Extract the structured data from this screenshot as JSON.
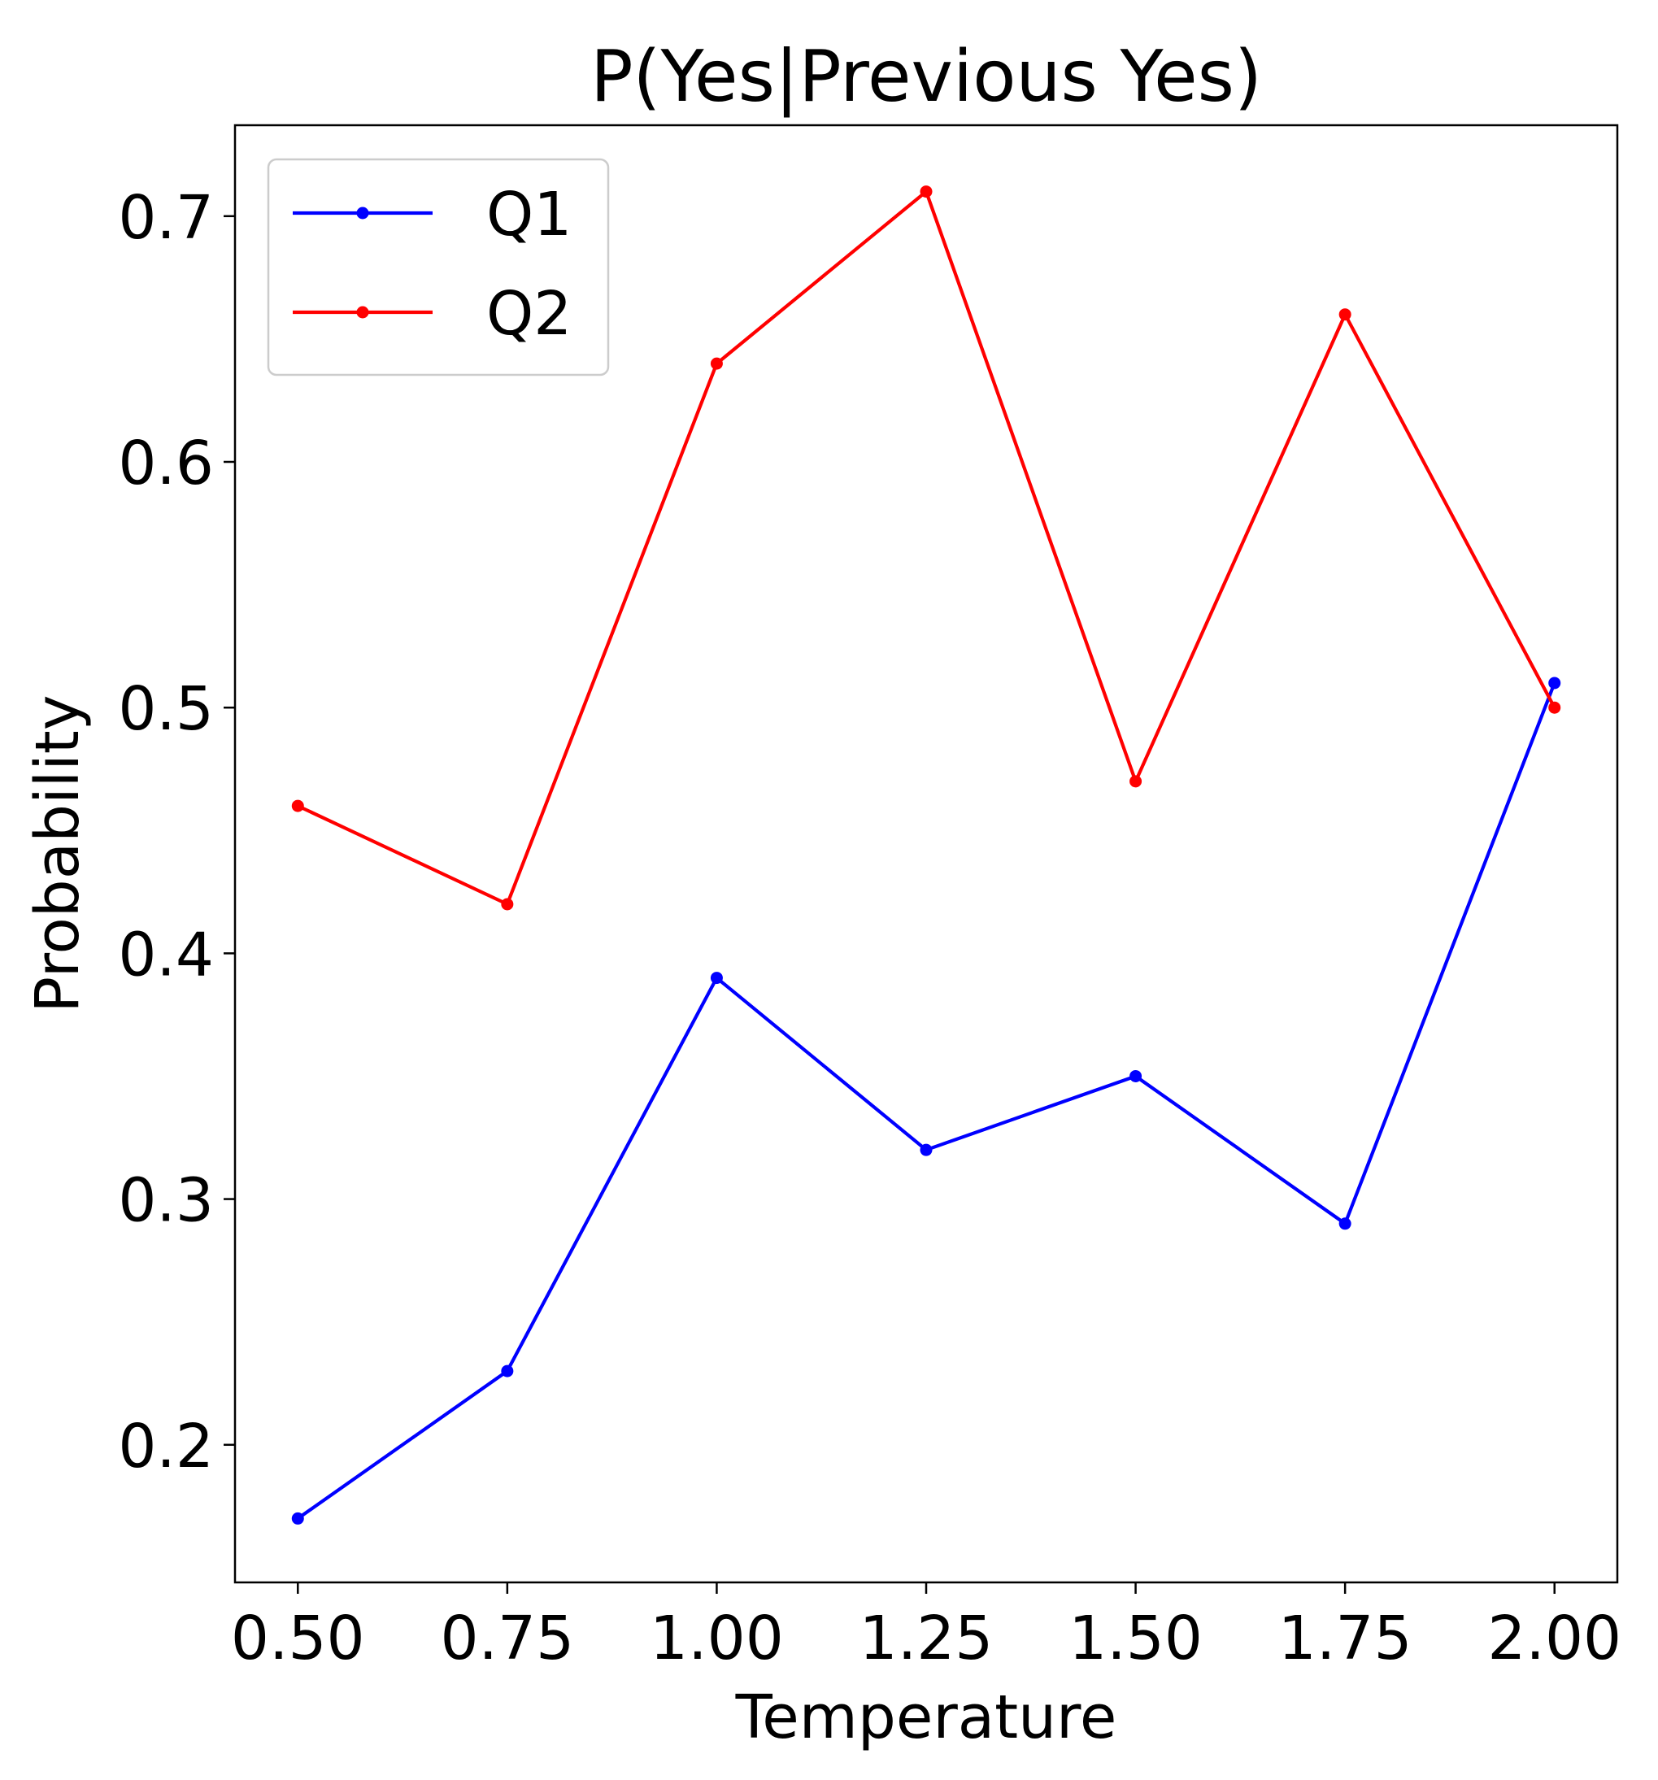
{
  "chart_data": {
    "type": "line",
    "title": "P(Yes|Previous Yes)",
    "xlabel": "Temperature",
    "ylabel": "Probability",
    "x": [
      0.5,
      0.75,
      1.0,
      1.25,
      1.5,
      1.75,
      2.0
    ],
    "xlim": [
      0.425,
      2.075
    ],
    "ylim": [
      0.144,
      0.737
    ],
    "xticks": [
      0.5,
      0.75,
      1.0,
      1.25,
      1.5,
      1.75,
      2.0
    ],
    "xtick_labels": [
      "0.50",
      "0.75",
      "1.00",
      "1.25",
      "1.50",
      "1.75",
      "2.00"
    ],
    "yticks": [
      0.2,
      0.3,
      0.4,
      0.5,
      0.6,
      0.7
    ],
    "ytick_labels": [
      "0.2",
      "0.3",
      "0.4",
      "0.5",
      "0.6",
      "0.7"
    ],
    "grid": false,
    "legend_position": "top-left",
    "series": [
      {
        "name": "Q1",
        "color": "#0000ff",
        "marker": "dot",
        "values": [
          0.17,
          0.23,
          0.39,
          0.32,
          0.35,
          0.29,
          0.51
        ]
      },
      {
        "name": "Q2",
        "color": "#ff0000",
        "marker": "dot",
        "values": [
          0.46,
          0.42,
          0.64,
          0.71,
          0.47,
          0.66,
          0.5
        ]
      }
    ]
  }
}
